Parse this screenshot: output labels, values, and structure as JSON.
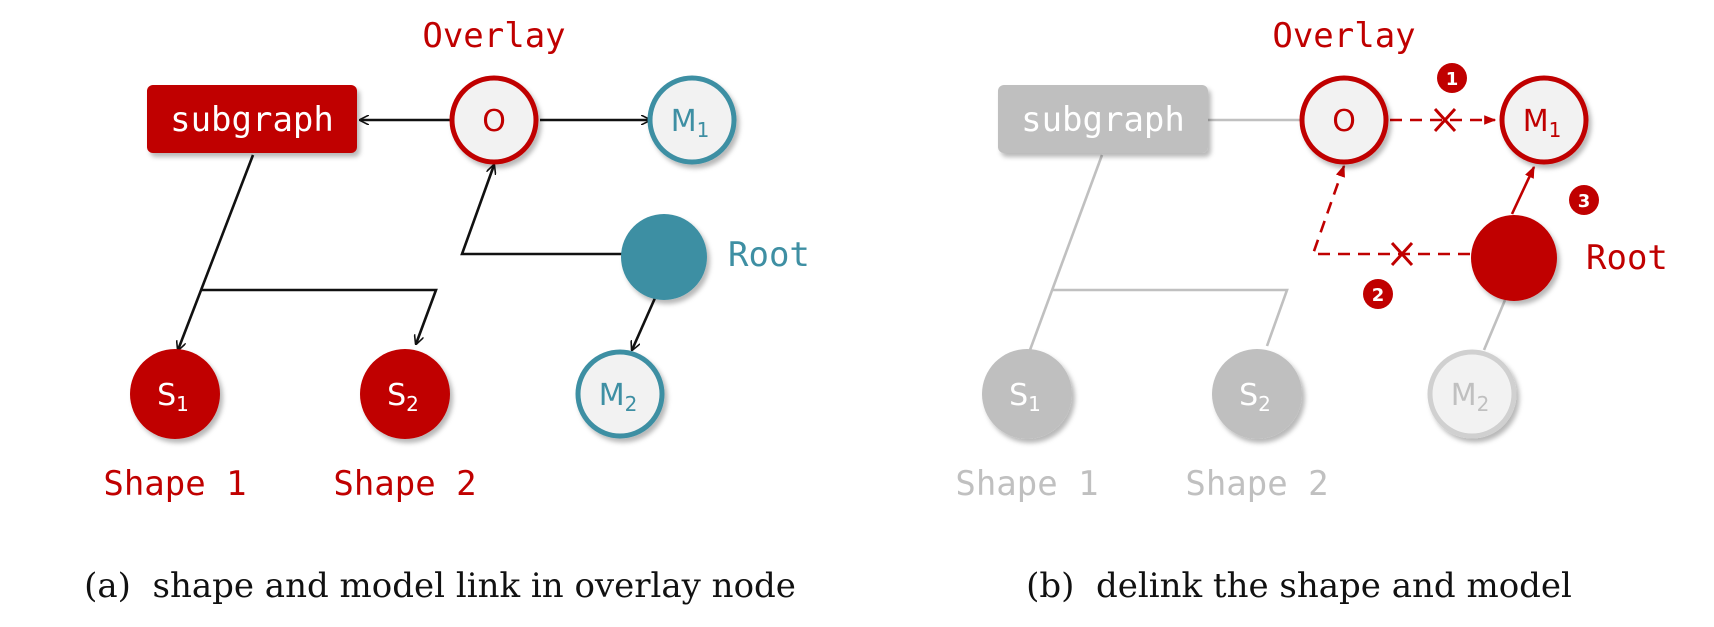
{
  "colors": {
    "red": "#c00000",
    "teal": "#3e8fa3",
    "gray": "#bfbfbf",
    "gray_text": "#c0c0c0",
    "node_fill": "#f2f2f2",
    "black": "#111111"
  },
  "panel_a": {
    "overlay_label": "Overlay",
    "subgraph_label": "subgraph",
    "o_label": "O",
    "m1_base": "M",
    "m1_sub": "1",
    "m2_base": "M",
    "m2_sub": "2",
    "s1_base": "S",
    "s1_sub": "1",
    "s2_base": "S",
    "s2_sub": "2",
    "root_label": "Root",
    "shape1_label": "Shape 1",
    "shape2_label": "Shape 2",
    "caption": "(a)  shape and model link in overlay node"
  },
  "panel_b": {
    "overlay_label": "Overlay",
    "subgraph_label": "subgraph",
    "o_label": "O",
    "m1_base": "M",
    "m1_sub": "1",
    "m2_base": "M",
    "m2_sub": "2",
    "s1_base": "S",
    "s1_sub": "1",
    "s2_base": "S",
    "s2_sub": "2",
    "root_label": "Root",
    "shape1_label": "Shape 1",
    "shape2_label": "Shape 2",
    "step1": "1",
    "step2": "2",
    "step3": "3",
    "caption": "(b)  delink the shape and model"
  }
}
